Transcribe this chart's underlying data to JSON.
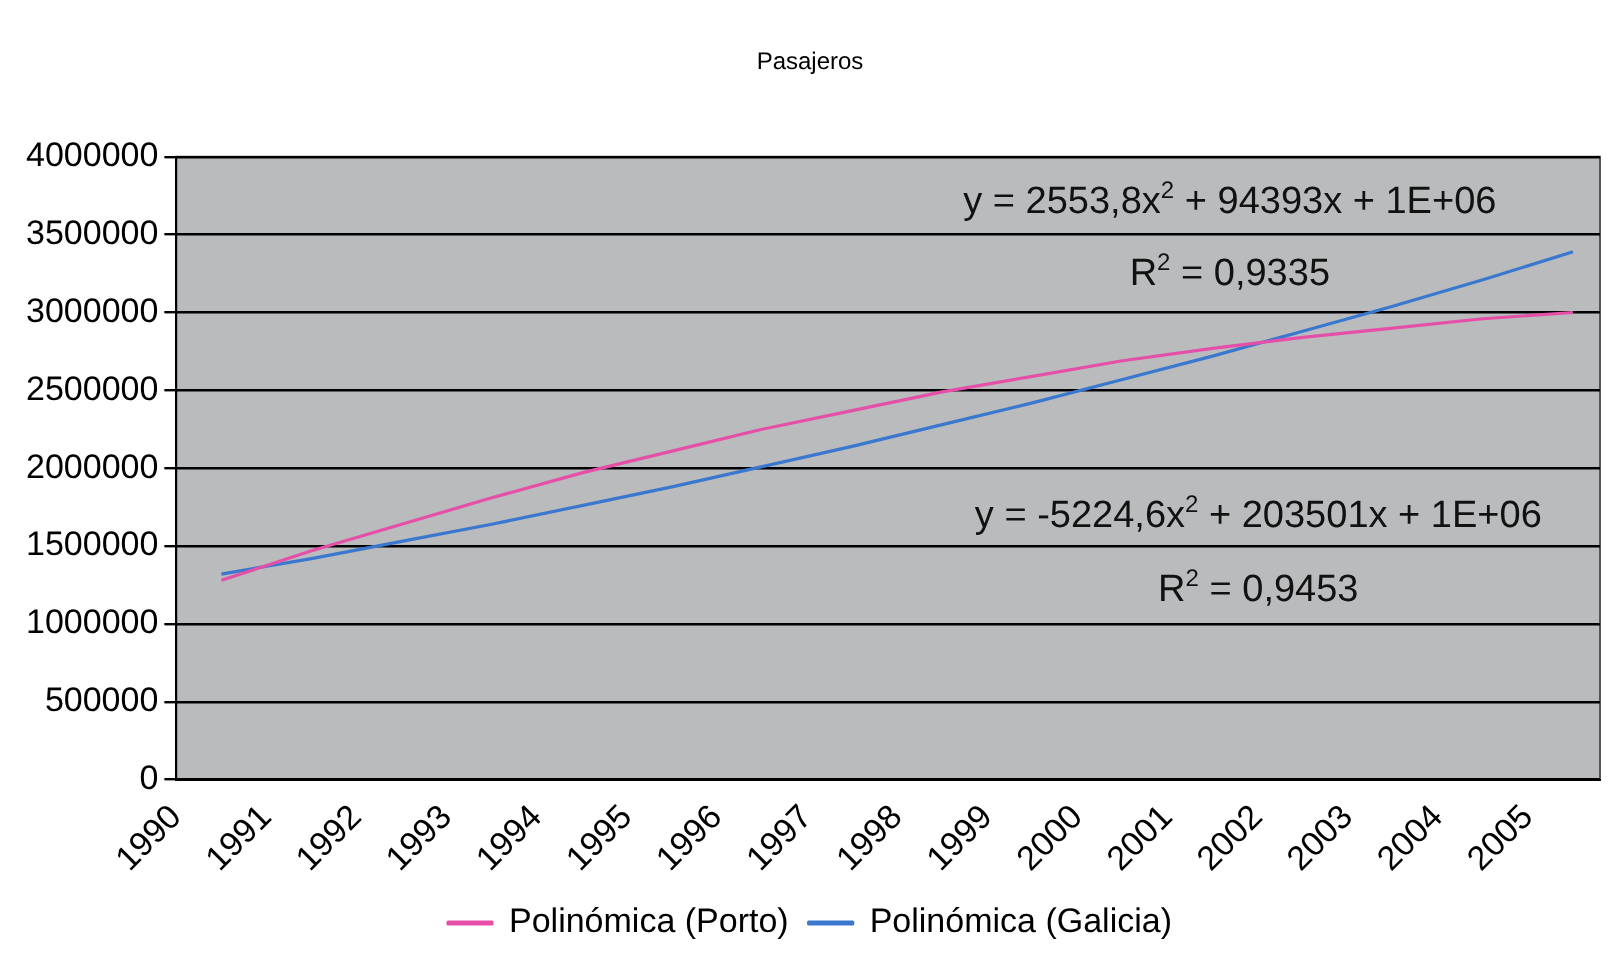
{
  "chart_data": {
    "type": "line",
    "title": "Pasajeros",
    "x": [
      1990.5,
      1991.5,
      1992.5,
      1993.5,
      1994.5,
      1995.5,
      1996.5,
      1997.5,
      1998.5,
      1999.5,
      2000.5,
      2001.5,
      2002.5,
      2003.5,
      2004.5,
      2005.5
    ],
    "xlim": [
      1990,
      2005.8
    ],
    "xticks": [
      1990,
      1991,
      1992,
      1993,
      1994,
      1995,
      1996,
      1997,
      1998,
      1999,
      2000,
      2001,
      2002,
      2003,
      2004,
      2005
    ],
    "ylim": [
      0,
      4000000
    ],
    "yticks": [
      0,
      500000,
      1000000,
      1500000,
      2000000,
      2500000,
      3000000,
      3500000,
      4000000
    ],
    "grid": "y",
    "legend": "bottom",
    "marker": "none",
    "line_style": "solid",
    "series": [
      {
        "name": "Polinómica (Porto)",
        "color": "#e64fa8",
        "values": [
          1280000,
          1470000,
          1640000,
          1810000,
          1970000,
          2110000,
          2250000,
          2370000,
          2490000,
          2590000,
          2690000,
          2770000,
          2840000,
          2900000,
          2960000,
          3000000
        ]
      },
      {
        "name": "Polinómica (Galicia)",
        "color": "#3a78d0",
        "values": [
          1320000,
          1420000,
          1530000,
          1640000,
          1760000,
          1880000,
          2010000,
          2140000,
          2280000,
          2420000,
          2570000,
          2720000,
          2880000,
          3040000,
          3210000,
          3390000
        ]
      }
    ],
    "annotations": [
      "y = 2553,8x$^{2}$ + 94393x + 1E+06",
      "R$^{2}$ = 0,9335",
      "y = -5224,6x$^{2}$ + 203501x + 1E+06",
      "R$^{2}$ = 0,9453"
    ]
  }
}
